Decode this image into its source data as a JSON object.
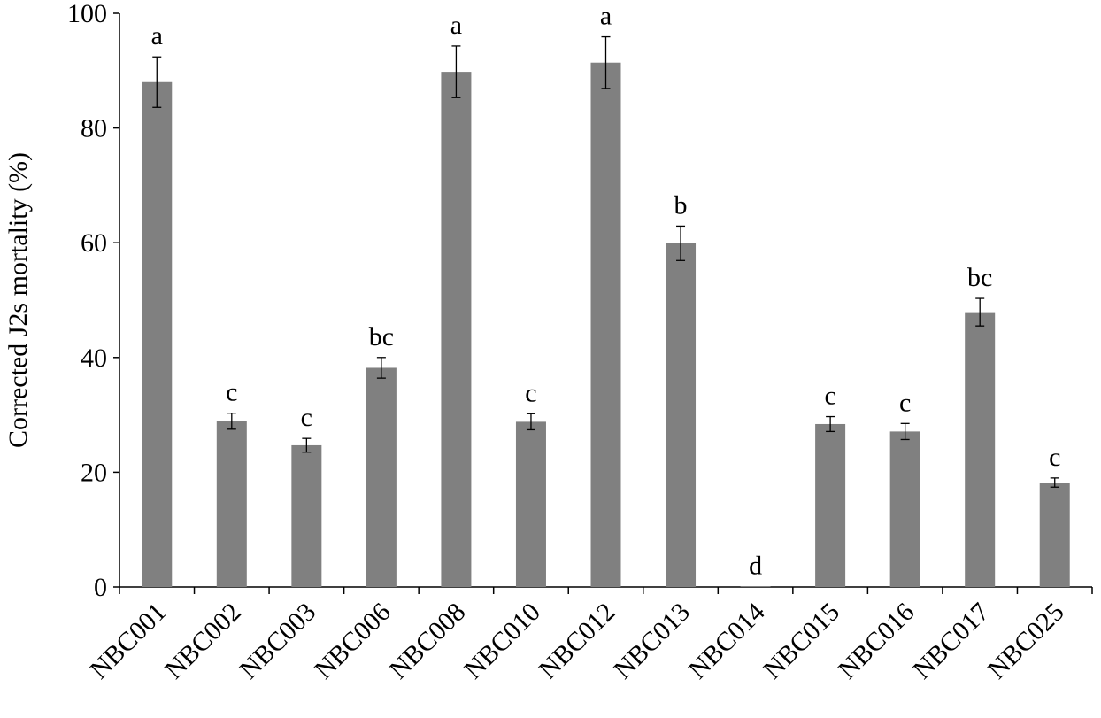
{
  "chart_data": {
    "type": "bar",
    "title": "",
    "xlabel": "",
    "ylabel": "Corrected J2s mortality (%)",
    "ylim": [
      0,
      100
    ],
    "yticks": [
      0,
      20,
      40,
      60,
      80,
      100
    ],
    "grid": false,
    "legend": "none",
    "bar_color": "#808080",
    "categories": [
      "NBC001",
      "NBC002",
      "NBC003",
      "NBC006",
      "NBC008",
      "NBC010",
      "NBC012",
      "NBC013",
      "NBC014",
      "NBC015",
      "NBC016",
      "NBC017",
      "NBC025"
    ],
    "values": [
      88.0,
      28.9,
      24.7,
      38.2,
      89.8,
      28.8,
      91.4,
      59.9,
      0.1,
      28.4,
      27.1,
      47.9,
      18.2
    ],
    "errors": [
      4.4,
      1.4,
      1.2,
      1.8,
      4.5,
      1.4,
      4.5,
      3.0,
      0.0,
      1.3,
      1.4,
      2.4,
      0.8
    ],
    "significance": [
      "a",
      "c",
      "c",
      "bc",
      "a",
      "c",
      "a",
      "b",
      "d",
      "c",
      "c",
      "bc",
      "c"
    ]
  }
}
